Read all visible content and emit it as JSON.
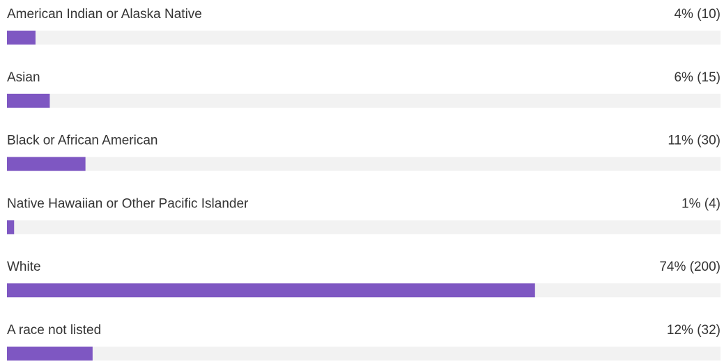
{
  "chart_data": {
    "type": "bar",
    "orientation": "horizontal",
    "categories": [
      "American Indian or Alaska Native",
      "Asian",
      "Black or African American",
      "Native Hawaiian or Other Pacific Islander",
      "White",
      "A race not listed"
    ],
    "values": [
      4,
      6,
      11,
      1,
      74,
      12
    ],
    "value_labels": [
      "4% (10)",
      "6% (15)",
      "11% (30)",
      "1% (4)",
      "74% (200)",
      "12% (32)"
    ],
    "color": "#7e57c2",
    "track_color": "#f2f2f2",
    "xlim": [
      0,
      100
    ]
  }
}
